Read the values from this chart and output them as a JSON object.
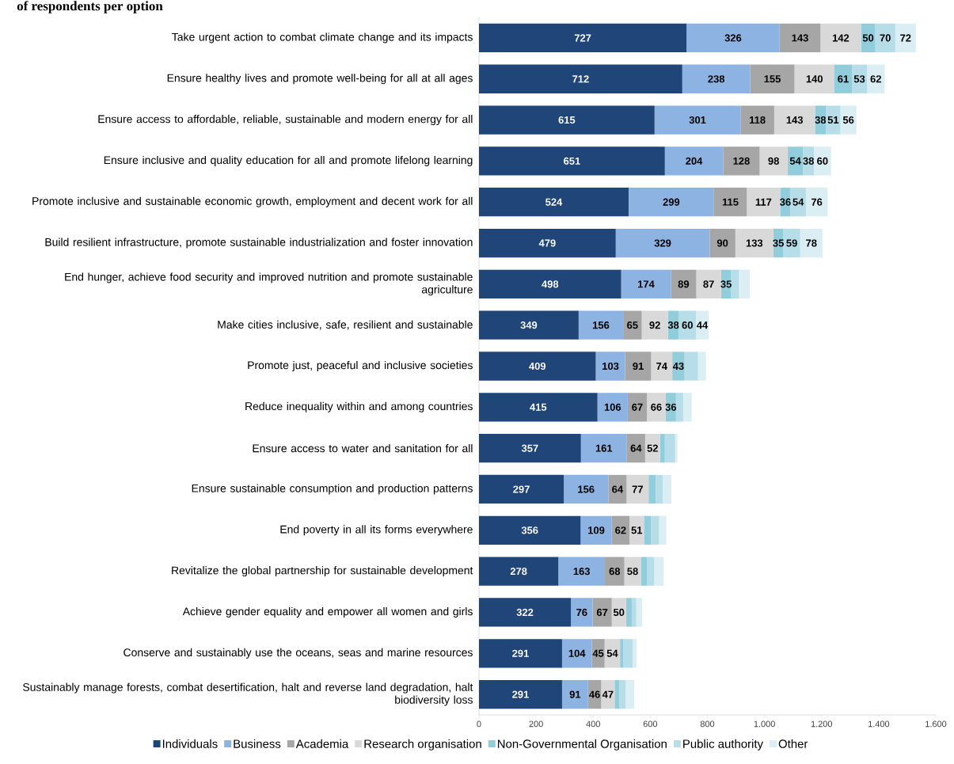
{
  "chart_data": {
    "type": "bar",
    "orientation": "horizontal",
    "stacked": true,
    "title": "of respondents per option",
    "categories": [
      "Take urgent action to combat climate change and its impacts",
      "Ensure healthy lives and promote well-being for all at all ages",
      "Ensure access to affordable, reliable, sustainable and modern energy for all",
      "Ensure inclusive and quality education for all and promote lifelong learning",
      "Promote inclusive and sustainable economic growth, employment and decent work for all",
      "Build resilient infrastructure, promote sustainable industrialization and foster innovation",
      "End hunger, achieve food security and improved nutrition and promote sustainable agriculture",
      "Make cities inclusive, safe, resilient and sustainable",
      "Promote just, peaceful and inclusive societies",
      "Reduce inequality within and among countries",
      "Ensure access to water and sanitation for all",
      "Ensure sustainable consumption and production patterns",
      "End poverty in all its forms everywhere",
      "Revitalize the global partnership for sustainable development",
      "Achieve gender equality and empower all women and girls",
      "Conserve and sustainably use the oceans, seas and marine resources",
      "Sustainably manage forests, combat desertification, halt and reverse land degradation, halt biodiversity loss"
    ],
    "series": [
      {
        "name": "Individuals",
        "color": "#1f4579",
        "values": [
          727,
          712,
          615,
          651,
          524,
          479,
          498,
          349,
          409,
          415,
          357,
          297,
          356,
          278,
          322,
          291,
          291
        ],
        "value_labels": [
          "727",
          "712",
          "615",
          "651",
          "524",
          "479",
          "498",
          "349",
          "409",
          "415",
          "357",
          "297",
          "356",
          "278",
          "322",
          "291",
          "291"
        ]
      },
      {
        "name": "Business",
        "color": "#8db3e2",
        "values": [
          326,
          238,
          301,
          204,
          299,
          329,
          174,
          156,
          103,
          106,
          161,
          156,
          109,
          163,
          76,
          104,
          91
        ],
        "value_labels": [
          "326",
          "238",
          "301",
          "204",
          "299",
          "329",
          "174",
          "156",
          "103",
          "106",
          "161",
          "156",
          "109",
          "163",
          "76",
          "104",
          "91"
        ]
      },
      {
        "name": "Academia",
        "color": "#a6a6a6",
        "values": [
          143,
          155,
          118,
          128,
          115,
          90,
          89,
          65,
          91,
          67,
          64,
          64,
          62,
          68,
          67,
          45,
          46
        ],
        "value_labels": [
          "143",
          "155",
          "118",
          "128",
          "115",
          "90",
          "89",
          "65",
          "91",
          "67",
          "64",
          "64",
          "62",
          "68",
          "67",
          "45",
          "46"
        ]
      },
      {
        "name": "Research organisation",
        "color": "#d9d9d9",
        "values": [
          142,
          140,
          143,
          98,
          117,
          133,
          87,
          92,
          74,
          66,
          52,
          77,
          51,
          58,
          50,
          54,
          47
        ],
        "value_labels": [
          "142",
          "140",
          "143",
          "98",
          "117",
          "133",
          "87",
          "92",
          "74",
          "66",
          "52",
          "77",
          "51",
          "58",
          "50",
          "54",
          "47"
        ]
      },
      {
        "name": "Non-Governmental Organisation",
        "color": "#92cddc",
        "values": [
          50,
          61,
          38,
          54,
          36,
          35,
          35,
          38,
          43,
          36,
          17,
          25,
          25,
          22,
          20,
          11,
          17
        ],
        "value_labels": [
          "50",
          "61",
          "38",
          "54",
          "36",
          "35",
          "35",
          "38",
          "43",
          "36",
          null,
          null,
          null,
          null,
          null,
          null,
          null
        ]
      },
      {
        "name": "Public authority",
        "color": "#b7dee8",
        "values": [
          70,
          53,
          51,
          38,
          54,
          59,
          28,
          60,
          47,
          25,
          36,
          25,
          28,
          25,
          16,
          33,
          22
        ],
        "value_labels": [
          "70",
          "53",
          "51",
          "38",
          "54",
          "59",
          null,
          "60",
          null,
          null,
          null,
          null,
          null,
          null,
          null,
          null,
          null
        ]
      },
      {
        "name": "Other",
        "color": "#daeef3",
        "values": [
          72,
          62,
          56,
          60,
          76,
          78,
          38,
          44,
          28,
          30,
          8,
          30,
          25,
          33,
          20,
          14,
          30
        ],
        "value_labels": [
          "72",
          "62",
          "56",
          "60",
          "76",
          "78",
          null,
          "44",
          null,
          null,
          null,
          null,
          null,
          null,
          null,
          null,
          null
        ]
      }
    ],
    "xlim": [
      0,
      1600
    ],
    "xticks": [
      0,
      200,
      400,
      600,
      800,
      {
        "value": 1000,
        "label": "1.000"
      },
      {
        "value": 1200,
        "label": "1.200"
      },
      {
        "value": 1400,
        "label": "1.400"
      },
      {
        "value": 1600,
        "label": "1.600"
      }
    ],
    "legend": "bottom"
  }
}
